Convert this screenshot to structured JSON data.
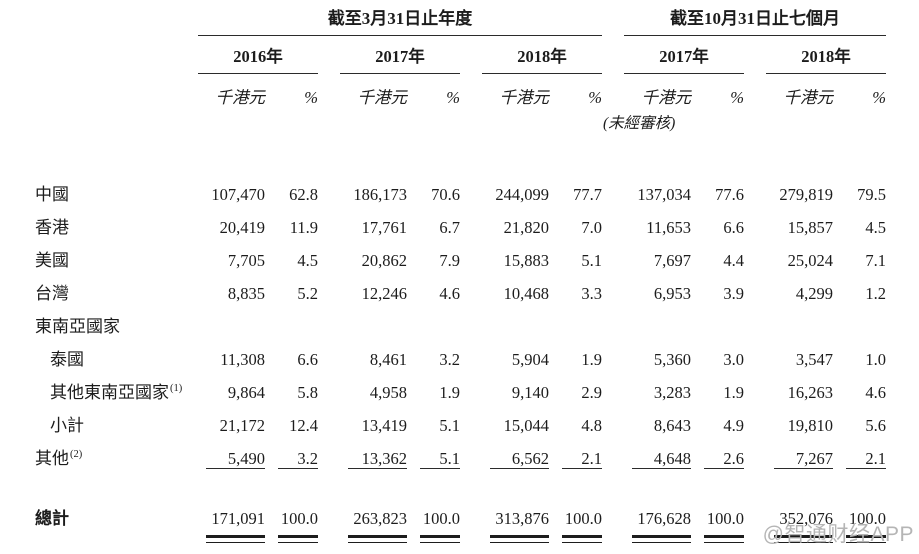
{
  "header": {
    "group1_title": "截至3月31日止年度",
    "group2_title": "截至10月31日止七個月",
    "years": [
      "2016年",
      "2017年",
      "2018年",
      "2017年",
      "2018年"
    ],
    "unit_label": "千港元",
    "pct_label": "%",
    "unaudited_note": "(未經審核)"
  },
  "table": {
    "rows": [
      {
        "label": "中國",
        "sup": "",
        "indent": false,
        "rule": false,
        "values": [
          "107,470",
          "62.8",
          "186,173",
          "70.6",
          "244,099",
          "77.7",
          "137,034",
          "77.6",
          "279,819",
          "79.5"
        ]
      },
      {
        "label": "香港",
        "sup": "",
        "indent": false,
        "rule": false,
        "values": [
          "20,419",
          "11.9",
          "17,761",
          "6.7",
          "21,820",
          "7.0",
          "11,653",
          "6.6",
          "15,857",
          "4.5"
        ]
      },
      {
        "label": "美國",
        "sup": "",
        "indent": false,
        "rule": false,
        "values": [
          "7,705",
          "4.5",
          "20,862",
          "7.9",
          "15,883",
          "5.1",
          "7,697",
          "4.4",
          "25,024",
          "7.1"
        ]
      },
      {
        "label": "台灣",
        "sup": "",
        "indent": false,
        "rule": false,
        "values": [
          "8,835",
          "5.2",
          "12,246",
          "4.6",
          "10,468",
          "3.3",
          "6,953",
          "3.9",
          "4,299",
          "1.2"
        ]
      },
      {
        "label": "東南亞國家",
        "sup": "",
        "indent": false,
        "rule": false,
        "values": [
          "",
          "",
          "",
          "",
          "",
          "",
          "",
          "",
          "",
          ""
        ]
      },
      {
        "label": "泰國",
        "sup": "",
        "indent": true,
        "rule": false,
        "values": [
          "11,308",
          "6.6",
          "8,461",
          "3.2",
          "5,904",
          "1.9",
          "5,360",
          "3.0",
          "3,547",
          "1.0"
        ]
      },
      {
        "label": "其他東南亞國家",
        "sup": "(1)",
        "indent": true,
        "rule": false,
        "values": [
          "9,864",
          "5.8",
          "4,958",
          "1.9",
          "9,140",
          "2.9",
          "3,283",
          "1.9",
          "16,263",
          "4.6"
        ]
      },
      {
        "label": "小計",
        "sup": "",
        "indent": true,
        "rule": false,
        "values": [
          "21,172",
          "12.4",
          "13,419",
          "5.1",
          "15,044",
          "4.8",
          "8,643",
          "4.9",
          "19,810",
          "5.6"
        ]
      },
      {
        "label": "其他",
        "sup": "(2)",
        "indent": false,
        "rule": true,
        "values": [
          "5,490",
          "3.2",
          "13,362",
          "5.1",
          "6,562",
          "2.1",
          "4,648",
          "2.6",
          "7,267",
          "2.1"
        ]
      }
    ],
    "total_row": {
      "label": "總計",
      "values": [
        "171,091",
        "100.0",
        "263,823",
        "100.0",
        "313,876",
        "100.0",
        "176,628",
        "100.0",
        "352,076",
        "100.0"
      ]
    }
  },
  "watermark": "@智通财经APP"
}
